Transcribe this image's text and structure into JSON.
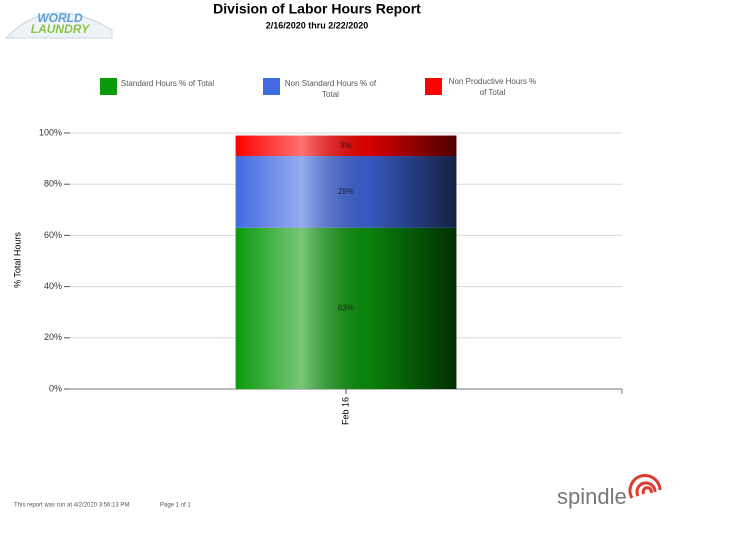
{
  "chart_data": {
    "type": "stacked_bar",
    "title": "Division of Labor Hours Report",
    "subtitle": "2/16/2020 thru 2/22/2020",
    "y_label": "% Total Hours",
    "categories": [
      "Feb 16"
    ],
    "series": [
      {
        "name": "Standard Hours % of Total",
        "color": "#0a9a0a",
        "values": [
          63
        ],
        "value_labels": [
          "63%"
        ]
      },
      {
        "name": "Non Standard Hours % of Total",
        "color": "#4169e1",
        "values": [
          28
        ],
        "value_labels": [
          "28%"
        ]
      },
      {
        "name": "Non Productive Hours % of Total",
        "color": "#ff0000",
        "values": [
          8
        ],
        "value_labels": [
          "8%"
        ]
      }
    ],
    "ylim": [
      0,
      100
    ],
    "yticks": [
      {
        "value": 0,
        "label": "0%"
      },
      {
        "value": 20,
        "label": "20%"
      },
      {
        "value": 40,
        "label": "40%"
      },
      {
        "value": 60,
        "label": "60%"
      },
      {
        "value": 80,
        "label": "80%"
      },
      {
        "value": 100,
        "label": "100%"
      }
    ],
    "grid": true,
    "legend": "top"
  },
  "report": {
    "logo_top": "WORLD",
    "logo_bottom": "LAUNDRY",
    "run_note": "This report was run at 4/2/2020 3:56:13 PM",
    "page_note": "Page  1 of 1",
    "brand": "spindle"
  }
}
